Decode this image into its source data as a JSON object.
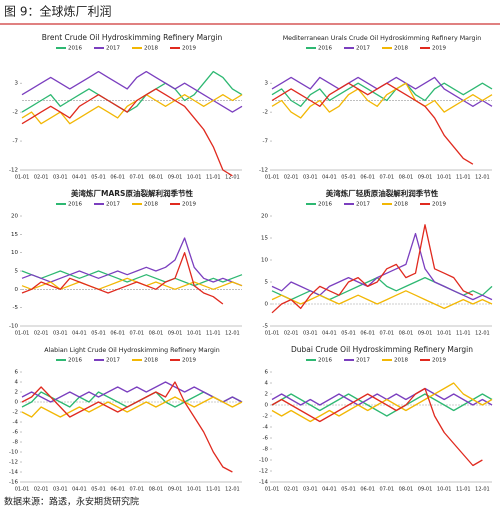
{
  "title": "图 9：全球炼厂利润",
  "source": "数据来源：路透，永安期货研究院",
  "chart_data": [
    {
      "type": "line",
      "title": "Brent Crude Oil Hydroskimming Refinery Margin",
      "ylim": [
        -12,
        7
      ],
      "yticks": [
        -12,
        -7,
        -2,
        3
      ],
      "categories": [
        "01-01",
        null,
        "02-01",
        null,
        "03-01",
        null,
        "04-01",
        null,
        "05-01",
        null,
        "06-01",
        null,
        "07-01",
        null,
        "08-01",
        null,
        "09-01",
        null,
        "10-01",
        null,
        "11-01",
        null,
        "12-01",
        null
      ],
      "series": [
        {
          "name": "2016",
          "color": "#2eb872",
          "values": [
            -2,
            -1,
            0,
            1,
            -1,
            0,
            1,
            2,
            1,
            0,
            -1,
            -2,
            -1,
            1,
            2,
            3,
            2,
            0,
            1,
            3,
            5,
            4,
            2,
            1
          ]
        },
        {
          "name": "2017",
          "color": "#7b3fbf",
          "values": [
            1,
            2,
            3,
            4,
            3,
            2,
            3,
            4,
            5,
            4,
            3,
            2,
            4,
            5,
            4,
            3,
            2,
            3,
            2,
            1,
            0,
            -1,
            -2,
            -1
          ]
        },
        {
          "name": "2018",
          "color": "#f2b705",
          "values": [
            -3,
            -2,
            -4,
            -3,
            -2,
            -4,
            -3,
            -2,
            -1,
            -2,
            -3,
            -1,
            0,
            1,
            0,
            -1,
            0,
            1,
            0,
            -1,
            0,
            1,
            0,
            1
          ]
        },
        {
          "name": "2019",
          "color": "#e02a1f",
          "values": [
            -4,
            -3,
            -2,
            -1,
            -2,
            -3,
            -1,
            0,
            1,
            0,
            -1,
            -2,
            0,
            1,
            2,
            1,
            0,
            -1,
            -3,
            -5,
            -8,
            -12,
            -13,
            null
          ]
        }
      ]
    },
    {
      "type": "line",
      "title": "Mediterranean Urals Crude Oil Hydroskimming Refinery Margin",
      "ylim": [
        -12,
        7
      ],
      "yticks": [
        -12,
        -7,
        -2,
        3
      ],
      "categories": [
        "01-01",
        null,
        "02-01",
        null,
        "03-01",
        null,
        "04-01",
        null,
        "05-01",
        null,
        "06-01",
        null,
        "07-01",
        null,
        "08-01",
        null,
        "09-01",
        null,
        "10-01",
        null,
        "11-01",
        null,
        "12-01",
        null
      ],
      "series": [
        {
          "name": "2016",
          "color": "#2eb872",
          "values": [
            1,
            2,
            0,
            -1,
            1,
            2,
            0,
            1,
            2,
            3,
            2,
            1,
            0,
            2,
            3,
            1,
            0,
            2,
            3,
            2,
            1,
            2,
            3,
            2
          ]
        },
        {
          "name": "2017",
          "color": "#7b3fbf",
          "values": [
            2,
            3,
            4,
            3,
            2,
            4,
            3,
            2,
            3,
            4,
            3,
            2,
            3,
            4,
            3,
            2,
            3,
            4,
            2,
            1,
            0,
            -1,
            0,
            -1
          ]
        },
        {
          "name": "2018",
          "color": "#f2b705",
          "values": [
            -1,
            0,
            -2,
            -3,
            -1,
            0,
            -2,
            -1,
            1,
            2,
            0,
            -1,
            1,
            2,
            3,
            0,
            -1,
            0,
            -2,
            -1,
            0,
            1,
            0,
            1
          ]
        },
        {
          "name": "2019",
          "color": "#e02a1f",
          "values": [
            0,
            1,
            2,
            1,
            0,
            -1,
            1,
            2,
            3,
            2,
            1,
            2,
            3,
            2,
            1,
            0,
            -1,
            -3,
            -6,
            -8,
            -10,
            -11,
            null,
            null
          ]
        }
      ]
    },
    {
      "type": "line",
      "title": "美湾炼厂MARS原油裂解利润季节性",
      "ylim": [
        -10,
        20
      ],
      "yticks": [
        -10,
        -5,
        0,
        5,
        10,
        15,
        20
      ],
      "categories": [
        "01-01",
        null,
        "02-01",
        null,
        "03-01",
        null,
        "04-01",
        null,
        "05-01",
        null,
        "06-01",
        null,
        "07-01",
        null,
        "08-01",
        null,
        "09-01",
        null,
        "10-01",
        null,
        "11-01",
        null,
        "12-01",
        null
      ],
      "series": [
        {
          "name": "2016",
          "color": "#2eb872",
          "values": [
            5,
            4,
            3,
            4,
            5,
            4,
            3,
            4,
            5,
            4,
            3,
            2,
            3,
            4,
            3,
            2,
            3,
            2,
            1,
            2,
            3,
            2,
            3,
            4
          ]
        },
        {
          "name": "2017",
          "color": "#7b3fbf",
          "values": [
            3,
            4,
            3,
            2,
            3,
            4,
            5,
            4,
            3,
            4,
            5,
            4,
            5,
            6,
            5,
            6,
            8,
            14,
            6,
            3,
            2,
            3,
            2,
            1
          ]
        },
        {
          "name": "2018",
          "color": "#f2b705",
          "values": [
            1,
            0,
            1,
            2,
            0,
            1,
            2,
            1,
            0,
            1,
            2,
            3,
            2,
            1,
            2,
            1,
            0,
            1,
            2,
            1,
            0,
            1,
            2,
            1
          ]
        },
        {
          "name": "2019",
          "color": "#e02a1f",
          "values": [
            -1,
            0,
            2,
            1,
            0,
            3,
            2,
            1,
            0,
            -1,
            0,
            1,
            2,
            1,
            0,
            2,
            3,
            10,
            1,
            -1,
            -2,
            -4,
            null,
            null
          ]
        }
      ]
    },
    {
      "type": "line",
      "title": "美湾炼厂轻质原油裂解利润季节性",
      "ylim": [
        -5,
        20
      ],
      "yticks": [
        -5,
        0,
        5,
        10,
        15,
        20
      ],
      "categories": [
        "01-01",
        null,
        "02-01",
        null,
        "03-01",
        null,
        "04-01",
        null,
        "05-01",
        null,
        "06-01",
        null,
        "07-01",
        null,
        "08-01",
        null,
        "09-01",
        null,
        "10-01",
        null,
        "11-01",
        null,
        "12-01",
        null
      ],
      "series": [
        {
          "name": "2016",
          "color": "#2eb872",
          "values": [
            3,
            2,
            1,
            2,
            3,
            2,
            1,
            2,
            3,
            4,
            5,
            6,
            4,
            3,
            4,
            5,
            6,
            5,
            4,
            3,
            2,
            3,
            2,
            4
          ]
        },
        {
          "name": "2017",
          "color": "#7b3fbf",
          "values": [
            4,
            3,
            5,
            4,
            3,
            2,
            4,
            5,
            6,
            5,
            4,
            6,
            7,
            8,
            9,
            16,
            8,
            5,
            4,
            3,
            2,
            1,
            2,
            1
          ]
        },
        {
          "name": "2018",
          "color": "#f2b705",
          "values": [
            1,
            2,
            1,
            0,
            1,
            2,
            1,
            0,
            1,
            2,
            1,
            0,
            1,
            2,
            3,
            2,
            1,
            0,
            -1,
            0,
            1,
            0,
            1,
            0
          ]
        },
        {
          "name": "2019",
          "color": "#e02a1f",
          "values": [
            -2,
            0,
            1,
            -1,
            2,
            4,
            3,
            2,
            5,
            6,
            4,
            5,
            8,
            9,
            6,
            7,
            18,
            8,
            7,
            6,
            3,
            2,
            null,
            null
          ]
        }
      ]
    },
    {
      "type": "line",
      "title": "Alabian Light Crude Oil Hydroskimming Refinery Margin",
      "ylim": [
        -16,
        6
      ],
      "yticks": [
        -16,
        -14,
        -12,
        -10,
        -8,
        -6,
        -4,
        -2,
        0,
        2,
        4,
        6
      ],
      "categories": [
        "01-01",
        null,
        "02-01",
        null,
        "03-01",
        null,
        "04-01",
        null,
        "05-01",
        null,
        "06-01",
        null,
        "07-01",
        null,
        "08-01",
        null,
        "09-01",
        null,
        "10-01",
        null,
        "11-01",
        null,
        "12-01",
        null
      ],
      "series": [
        {
          "name": "2016",
          "color": "#2eb872",
          "values": [
            -1,
            0,
            2,
            1,
            0,
            -1,
            1,
            0,
            2,
            1,
            0,
            -1,
            0,
            1,
            2,
            0,
            -1,
            0,
            1,
            2,
            1,
            0,
            1,
            0
          ]
        },
        {
          "name": "2017",
          "color": "#7b3fbf",
          "values": [
            1,
            2,
            1,
            0,
            1,
            2,
            1,
            2,
            1,
            2,
            3,
            2,
            3,
            2,
            3,
            4,
            3,
            2,
            3,
            2,
            1,
            0,
            1,
            0
          ]
        },
        {
          "name": "2018",
          "color": "#f2b705",
          "values": [
            -2,
            -3,
            -1,
            -2,
            -3,
            -2,
            -1,
            -2,
            -1,
            0,
            -1,
            -2,
            -1,
            0,
            -1,
            0,
            1,
            0,
            -1,
            0,
            1,
            0,
            -1,
            0
          ]
        },
        {
          "name": "2019",
          "color": "#e02a1f",
          "values": [
            0,
            1,
            3,
            1,
            -1,
            -3,
            -2,
            -1,
            0,
            -1,
            -2,
            -1,
            0,
            1,
            2,
            1,
            4,
            0,
            -3,
            -6,
            -10,
            -13,
            -14,
            null
          ]
        }
      ]
    },
    {
      "type": "line",
      "title": "Dubai Crude Oil Hydroskimming Refinery Margin",
      "ylim": [
        -14,
        6
      ],
      "yticks": [
        -14,
        -12,
        -10,
        -8,
        -6,
        -4,
        -2,
        0,
        2,
        4,
        6
      ],
      "categories": [
        "01-01",
        null,
        "02-01",
        null,
        "03-01",
        null,
        "04-01",
        null,
        "05-01",
        null,
        "06-01",
        null,
        "07-01",
        null,
        "08-01",
        null,
        "09-01",
        null,
        "10-01",
        null,
        "11-01",
        null,
        "12-01",
        null
      ],
      "series": [
        {
          "name": "2016",
          "color": "#2eb872",
          "values": [
            0,
            1,
            2,
            1,
            0,
            -1,
            0,
            1,
            2,
            1,
            0,
            -1,
            -2,
            -1,
            0,
            1,
            2,
            1,
            0,
            -1,
            0,
            1,
            2,
            1
          ]
        },
        {
          "name": "2017",
          "color": "#7b3fbf",
          "values": [
            1,
            2,
            1,
            0,
            1,
            0,
            1,
            2,
            1,
            0,
            1,
            2,
            1,
            2,
            1,
            2,
            3,
            2,
            1,
            2,
            1,
            0,
            1,
            0
          ]
        },
        {
          "name": "2018",
          "color": "#f2b705",
          "values": [
            -1,
            -2,
            -1,
            -2,
            -3,
            -2,
            -1,
            -2,
            -1,
            0,
            -1,
            0,
            1,
            0,
            -1,
            0,
            1,
            2,
            3,
            4,
            2,
            1,
            0,
            1
          ]
        },
        {
          "name": "2019",
          "color": "#e02a1f",
          "values": [
            0,
            1,
            0,
            -1,
            -2,
            -3,
            -2,
            -1,
            0,
            1,
            2,
            1,
            0,
            -1,
            0,
            2,
            3,
            -2,
            -5,
            -7,
            -9,
            -11,
            -10,
            null
          ]
        }
      ]
    }
  ]
}
